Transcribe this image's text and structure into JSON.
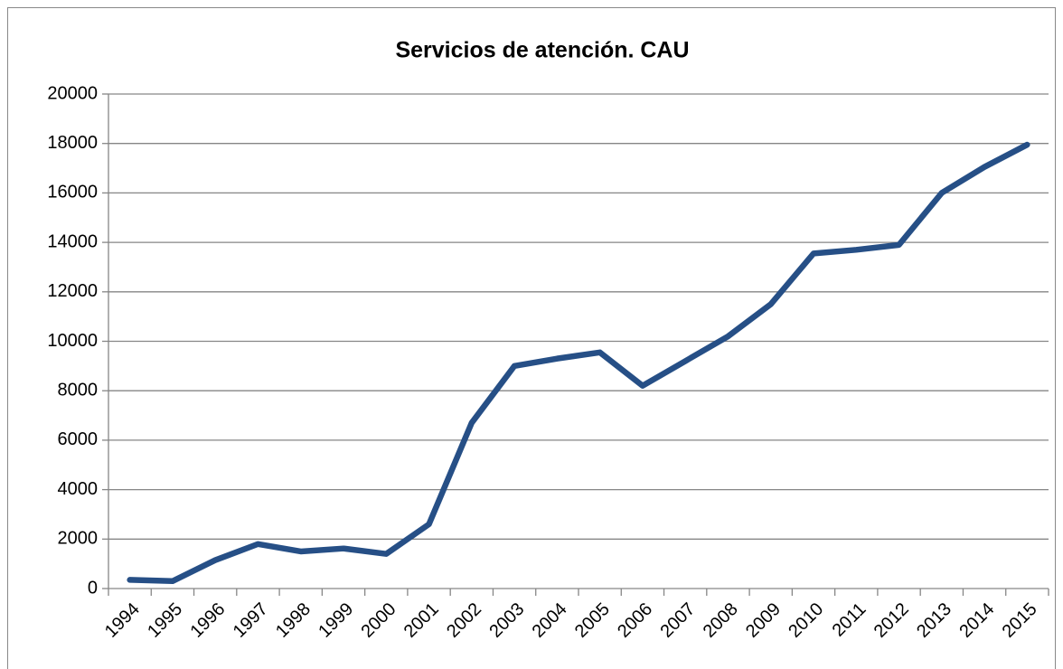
{
  "chart_data": {
    "type": "line",
    "title": "Servicios de atención. CAU",
    "categories": [
      "1994",
      "1995",
      "1996",
      "1997",
      "1998",
      "1999",
      "2000",
      "2001",
      "2002",
      "2003",
      "2004",
      "2005",
      "2006",
      "2007",
      "2008",
      "2009",
      "2010",
      "2011",
      "2012",
      "2013",
      "2014",
      "2015"
    ],
    "series": [
      {
        "name": "Servicios",
        "color": "#264f86",
        "values": [
          350,
          300,
          1150,
          1800,
          1500,
          1620,
          1400,
          2600,
          6700,
          9000,
          9300,
          9550,
          8200,
          9200,
          10200,
          11500,
          13550,
          13700,
          13900,
          16000,
          17050,
          17950
        ]
      }
    ],
    "ylim": [
      0,
      20000
    ],
    "yticks": [
      0,
      2000,
      4000,
      6000,
      8000,
      10000,
      12000,
      14000,
      16000,
      18000,
      20000
    ],
    "grid": true
  }
}
